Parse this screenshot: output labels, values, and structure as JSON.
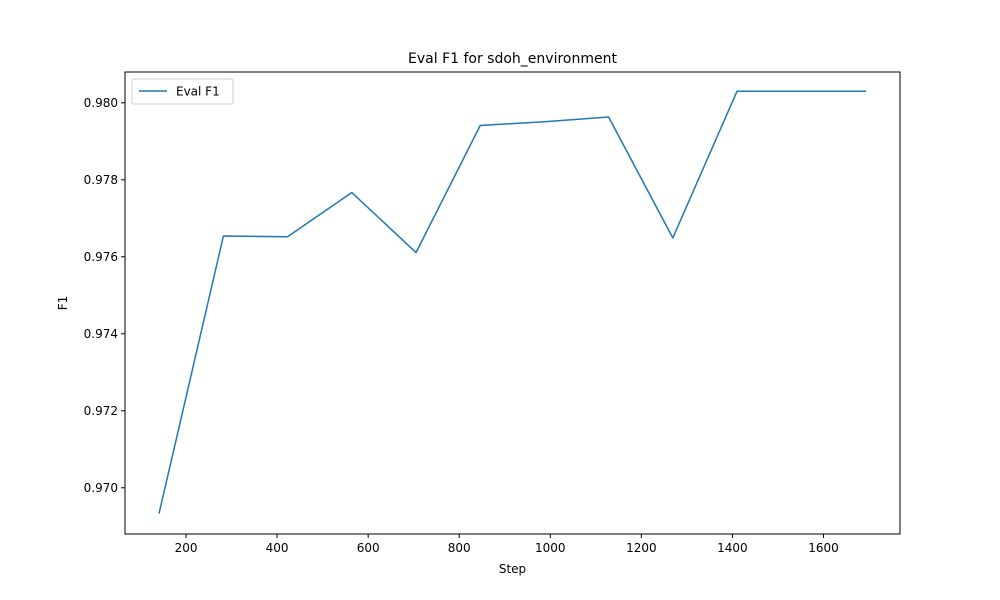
{
  "chart_data": {
    "type": "line",
    "title": "Eval F1 for sdoh_environment",
    "xlabel": "Step",
    "ylabel": "F1",
    "xlim": [
      66,
      1768
    ],
    "ylim": [
      0.9688,
      0.9808
    ],
    "xticks": [
      200,
      400,
      600,
      800,
      1000,
      1200,
      1400,
      1600
    ],
    "xtick_labels": [
      "200",
      "400",
      "600",
      "800",
      "1000",
      "1200",
      "1400",
      "1600"
    ],
    "yticks": [
      0.97,
      0.972,
      0.974,
      0.976,
      0.978,
      0.98
    ],
    "ytick_labels": [
      "0.970",
      "0.972",
      "0.974",
      "0.976",
      "0.978",
      "0.980"
    ],
    "grid": false,
    "legend_position": "top-left",
    "series": [
      {
        "name": "Eval F1",
        "color": "#1f77b4",
        "x": [
          141,
          282,
          423,
          564,
          705,
          846,
          987,
          1128,
          1269,
          1410,
          1551,
          1692
        ],
        "values": [
          0.96935,
          0.97654,
          0.97652,
          0.97767,
          0.97611,
          0.97941,
          0.97951,
          0.97963,
          0.97649,
          0.9803,
          0.9803,
          0.9803
        ]
      }
    ]
  }
}
